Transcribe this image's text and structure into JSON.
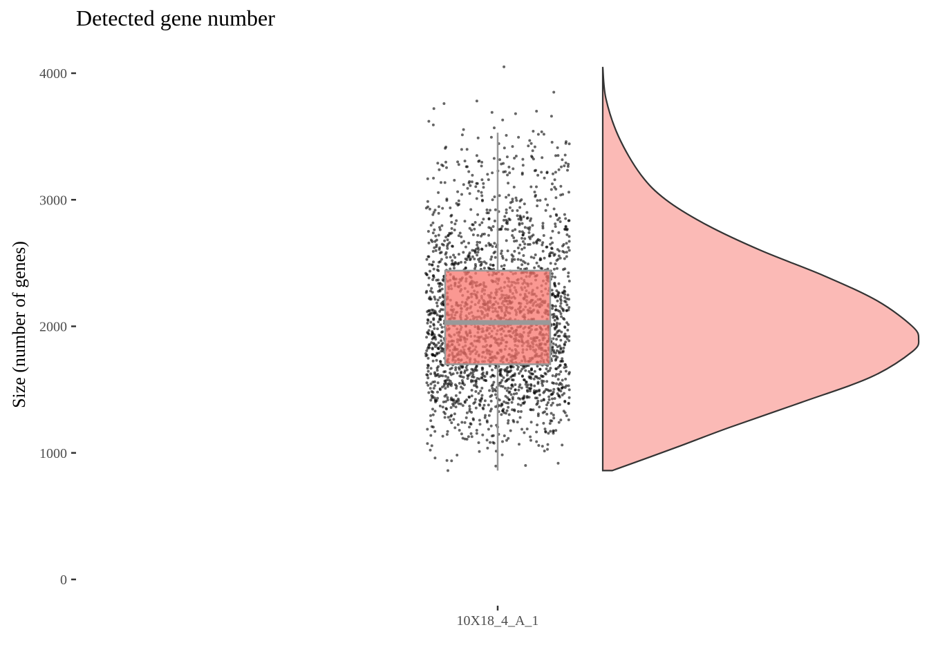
{
  "chart_data": {
    "type": "raincloud",
    "title": "Detected gene number",
    "xlabel": "",
    "ylabel": "Size (number of genes)",
    "categories": [
      "10X18_4_A_1"
    ],
    "ylim": [
      0,
      4000
    ],
    "y_ticks": [
      0,
      1000,
      2000,
      3000,
      4000
    ],
    "grid": false,
    "legend": "none",
    "box": {
      "min": 860,
      "q1": 1700,
      "median": 2030,
      "q3": 2440,
      "max": 3530
    },
    "points": {
      "count": 2400,
      "min": 860,
      "max": 4050,
      "outliers": [
        4050,
        3850,
        3780,
        3760,
        3720,
        3700,
        3690,
        3680,
        3660,
        3630,
        3620
      ]
    },
    "density": {
      "y": [
        860,
        950,
        1050,
        1200,
        1400,
        1600,
        1800,
        1900,
        2000,
        2200,
        2400,
        2600,
        2800,
        3000,
        3200,
        3500,
        3800,
        4050
      ],
      "density": [
        0.03,
        0.13,
        0.24,
        0.4,
        0.63,
        0.85,
        0.98,
        1.0,
        0.98,
        0.87,
        0.7,
        0.5,
        0.33,
        0.2,
        0.12,
        0.05,
        0.01,
        0.0
      ]
    },
    "colors": {
      "box_fill": "#f8766d",
      "violin_fill": "#f8766d",
      "outline": "#333333",
      "box_line": "#999999",
      "points": "#000000"
    }
  }
}
